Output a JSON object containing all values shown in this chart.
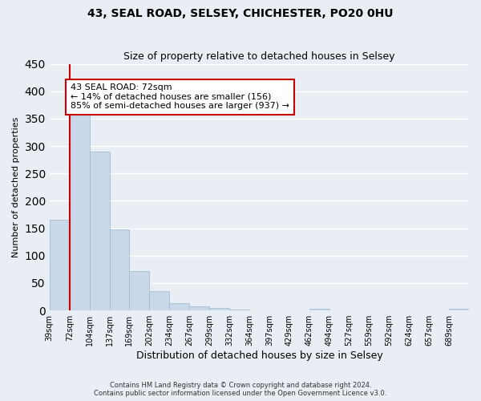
{
  "title": "43, SEAL ROAD, SELSEY, CHICHESTER, PO20 0HU",
  "subtitle": "Size of property relative to detached houses in Selsey",
  "xlabel": "Distribution of detached houses by size in Selsey",
  "ylabel": "Number of detached properties",
  "bar_color": "#c8d8e8",
  "bar_edge_color": "#9ab8cc",
  "background_color": "#e8eef4",
  "grid_color": "#ffffff",
  "bins": [
    "39sqm",
    "72sqm",
    "104sqm",
    "137sqm",
    "169sqm",
    "202sqm",
    "234sqm",
    "267sqm",
    "299sqm",
    "332sqm",
    "364sqm",
    "397sqm",
    "429sqm",
    "462sqm",
    "494sqm",
    "527sqm",
    "559sqm",
    "592sqm",
    "624sqm",
    "657sqm",
    "689sqm"
  ],
  "values": [
    165,
    375,
    290,
    148,
    72,
    35,
    14,
    7,
    5,
    2,
    0,
    0,
    0,
    3,
    0,
    0,
    0,
    0,
    0,
    0,
    3
  ],
  "ylim": [
    0,
    450
  ],
  "yticks": [
    0,
    50,
    100,
    150,
    200,
    250,
    300,
    350,
    400,
    450
  ],
  "annotation_title": "43 SEAL ROAD: 72sqm",
  "annotation_line1": "← 14% of detached houses are smaller (156)",
  "annotation_line2": "85% of semi-detached houses are larger (937) →",
  "annotation_box_color": "#ffffff",
  "annotation_box_edge": "#cc0000",
  "property_line_color": "#cc0000",
  "footer_line1": "Contains HM Land Registry data © Crown copyright and database right 2024.",
  "footer_line2": "Contains public sector information licensed under the Open Government Licence v3.0."
}
